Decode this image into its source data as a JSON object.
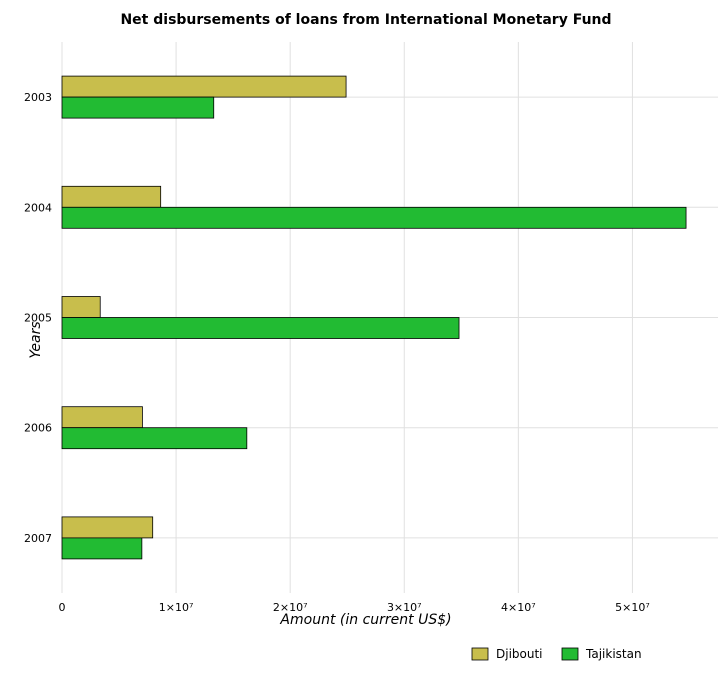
{
  "chart_data": {
    "type": "bar",
    "orientation": "horizontal",
    "title": "Net disbursements of loans from International Monetary Fund",
    "xlabel": "Amount (in current US$)",
    "ylabel": "Years",
    "categories": [
      "2003",
      "2004",
      "2005",
      "2006",
      "2007"
    ],
    "series": [
      {
        "name": "Djibouti",
        "color": "#c8be4c",
        "values": [
          24900000,
          8650000,
          3350000,
          7050000,
          7950000
        ]
      },
      {
        "name": "Tajikistan",
        "color": "#22bb33",
        "values": [
          13300000,
          54700000,
          34800000,
          16200000,
          7000000
        ]
      }
    ],
    "xlim": [
      0,
      57500000
    ],
    "xticks": [
      0,
      10000000,
      20000000,
      30000000,
      40000000,
      50000000
    ],
    "xtick_labels": [
      "0",
      "1×10⁷",
      "2×10⁷",
      "3×10⁷",
      "4×10⁷",
      "5×10⁷"
    ],
    "grid": true,
    "legend_position": "bottom-right"
  }
}
